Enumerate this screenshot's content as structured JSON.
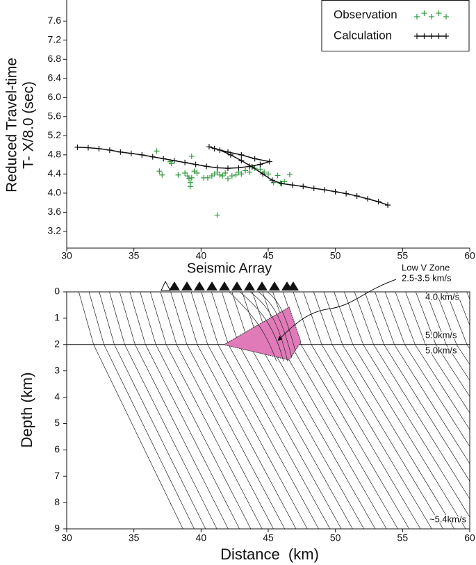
{
  "chart_data": [
    {
      "type": "scatter",
      "ylabel": [
        "Reduced Travel-time",
        "T- X/8.0 (sec)"
      ],
      "xlim": [
        30,
        60
      ],
      "xticks": [
        30,
        35,
        40,
        45,
        50,
        55,
        60
      ],
      "ylim": [
        2.85,
        8.04
      ],
      "yticks": [
        3.2,
        3.6,
        {
          "value": 4,
          "label": "4.0"
        },
        4.4,
        4.8,
        5.2,
        5.6,
        {
          "value": 6,
          "label": "6.0"
        },
        6.4,
        6.8,
        7.2,
        7.6
      ],
      "legend": "top-right",
      "series": [
        {
          "name": "Observation",
          "color": "#2e9a3c",
          "mode": "markers",
          "x": [
            36.7,
            36.9,
            37.1,
            37.7,
            37.8,
            38.3,
            38.8,
            39.0,
            39.1,
            39.2,
            39.3,
            39.3,
            39.5,
            39.7,
            40.2,
            40.5,
            40.8,
            41.0,
            41.2,
            41.4,
            41.6,
            41.8,
            42.0,
            42.3,
            42.6,
            42.8,
            43.0,
            43.3,
            43.6,
            44.0,
            44.4,
            44.7,
            45.0,
            45.4,
            45.7,
            45.9,
            46.2,
            46.6,
            41.2,
            39.2
          ],
          "values": [
            4.88,
            4.46,
            4.38,
            4.66,
            4.62,
            4.38,
            4.42,
            4.36,
            4.3,
            4.22,
            4.77,
            4.32,
            4.46,
            4.42,
            4.32,
            4.32,
            4.36,
            4.4,
            4.44,
            4.38,
            4.36,
            4.42,
            4.3,
            4.36,
            4.38,
            4.44,
            4.4,
            4.47,
            4.44,
            4.52,
            4.5,
            4.44,
            4.4,
            4.22,
            4.37,
            4.21,
            4.24,
            4.39,
            3.54,
            4.14
          ]
        },
        {
          "name": "Calculation",
          "color": "#111111",
          "mode": "lines+markers",
          "x": [
            30.8,
            31.6,
            32.4,
            33.2,
            34.0,
            34.8,
            35.6,
            36.4,
            37.2,
            38.0,
            38.8,
            39.6,
            40.4,
            41.2,
            42.0,
            42.8,
            43.6,
            44.4,
            45.1,
            44.0,
            43.0,
            42.0,
            41.0,
            40.6,
            41.4,
            42.2,
            43.0,
            43.8,
            44.6,
            45.3,
            46.0,
            46.8,
            47.6,
            48.4,
            49.2,
            50.0,
            50.8,
            51.6,
            52.4,
            53.2,
            53.9
          ],
          "values": [
            4.96,
            4.95,
            4.93,
            4.9,
            4.86,
            4.83,
            4.8,
            4.76,
            4.72,
            4.68,
            4.64,
            4.6,
            4.56,
            4.53,
            4.52,
            4.53,
            4.56,
            4.6,
            4.66,
            4.72,
            4.8,
            4.86,
            4.93,
            4.97,
            4.9,
            4.8,
            4.68,
            4.55,
            4.4,
            4.27,
            4.2,
            4.17,
            4.14,
            4.1,
            4.07,
            4.03,
            3.99,
            3.94,
            3.88,
            3.82,
            3.75
          ]
        }
      ]
    },
    {
      "type": "ray-diagram",
      "title": "Seismic Array",
      "xlabel": "Distance  (km)",
      "ylabel": "Depth (km)",
      "xlim": [
        30,
        60
      ],
      "xticks": [
        30,
        35,
        40,
        45,
        50,
        55,
        60
      ],
      "ylim": [
        9,
        0
      ],
      "yticks": [
        0,
        1,
        2,
        3,
        4,
        5,
        6,
        7,
        8,
        9
      ],
      "annotations": [
        "Low V Zone",
        "2.5-3.5 km/s",
        "4.0 km/s",
        "5.0km/s",
        "5.0km/s",
        "~5.4km/s"
      ]
    }
  ]
}
